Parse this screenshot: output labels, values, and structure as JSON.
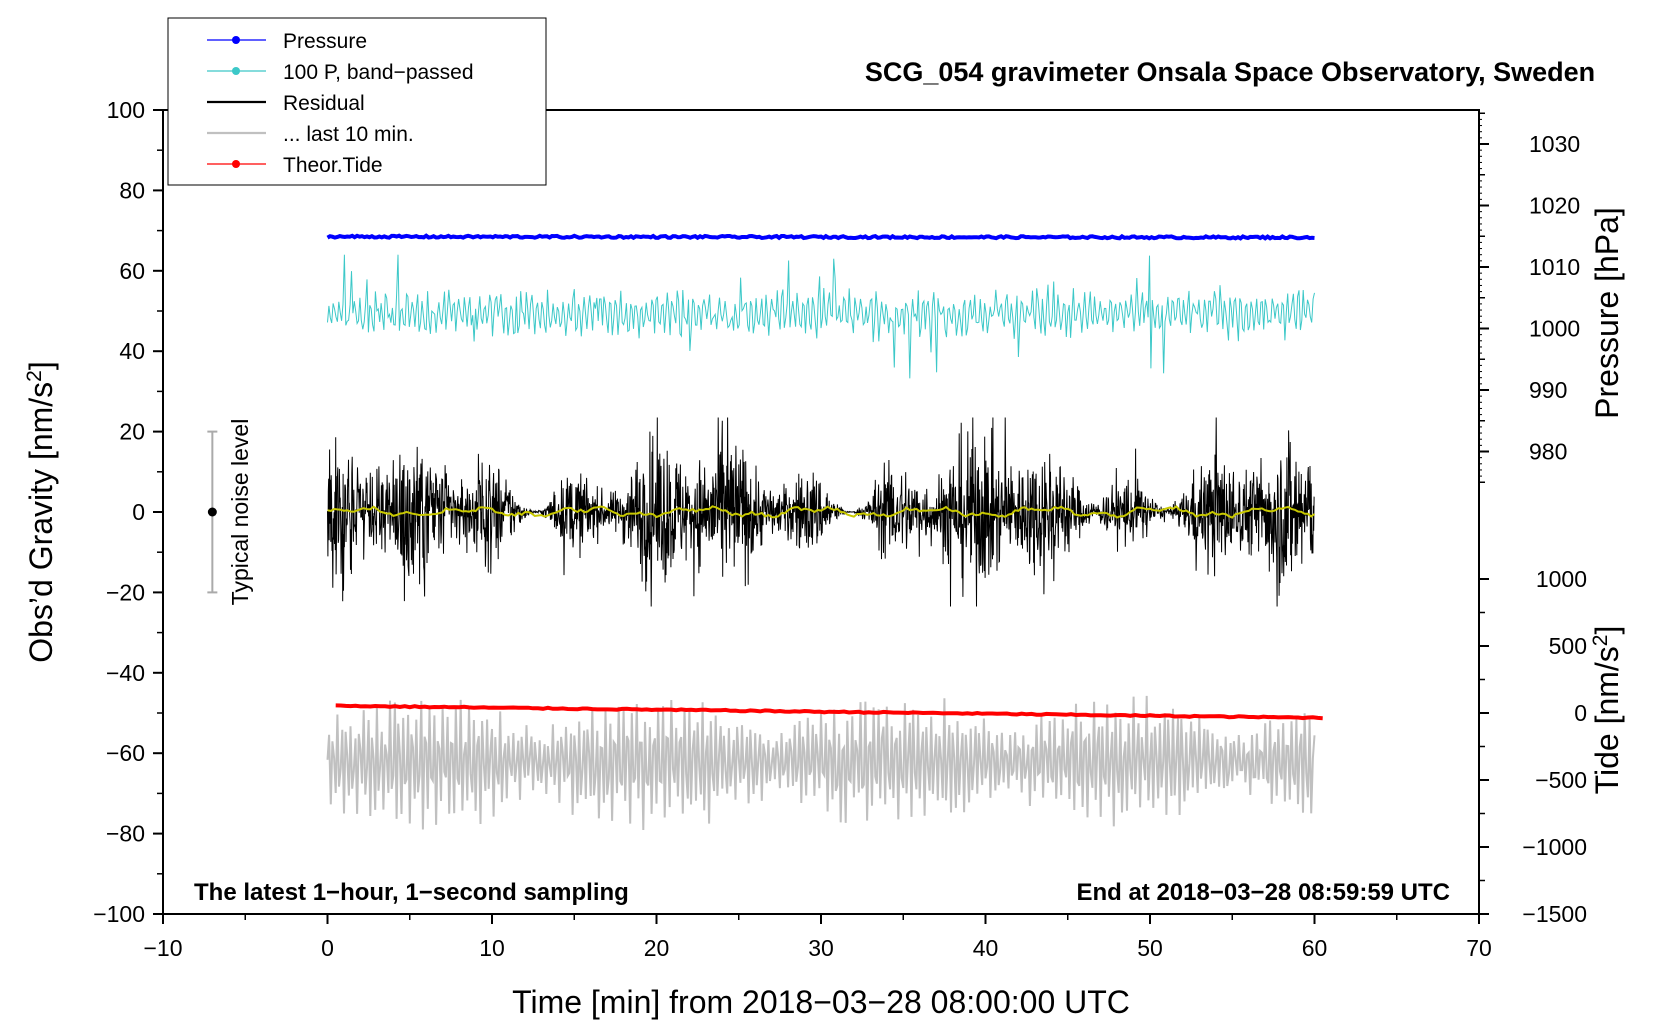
{
  "chart_data": {
    "type": "line",
    "title": "SCG_054 gravimeter Onsala Space Observatory, Sweden",
    "xlabel": "Time [min] from 2018−03−28 08:00:00 UTC",
    "ylabel": "Obs’d Gravity [nm/s",
    "ylabel_sup": "2",
    "ylabel_end": "]",
    "xlim": [
      -10,
      70
    ],
    "ylim": [
      -100,
      100
    ],
    "x_ticks": [
      -10,
      0,
      10,
      20,
      30,
      40,
      50,
      60,
      70
    ],
    "x_tick_labels": [
      "−10",
      "0",
      "10",
      "20",
      "30",
      "40",
      "50",
      "60",
      "70"
    ],
    "y_ticks": [
      -100,
      -80,
      -60,
      -40,
      -20,
      0,
      20,
      40,
      60,
      80,
      100
    ],
    "y_tick_labels": [
      "−100",
      "−80",
      "−60",
      "−40",
      "−20",
      "0",
      "20",
      "40",
      "60",
      "80",
      "100"
    ],
    "pressure_axis": {
      "label": "Pressure [hPa]",
      "ticks": [
        980,
        990,
        1000,
        1010,
        1020,
        1030
      ],
      "tick_labels": [
        "980",
        "990",
        "1000",
        "1010",
        "1020",
        "1030"
      ]
    },
    "tide_axis": {
      "label": "Tide [nm/s",
      "label_sup": "2",
      "label_end": "]",
      "ticks": [
        -1500,
        -1000,
        -500,
        0,
        500,
        1000
      ],
      "tick_labels": [
        "−1500",
        "−1000",
        "−500",
        "0",
        "500",
        "1000"
      ]
    },
    "series": [
      {
        "name": "Pressure",
        "color": "#0000ff",
        "x": [
          0,
          60
        ],
        "values_hpa": [
          1014.7,
          1014.3
        ],
        "values_plot": [
          68.5,
          68.3
        ]
      },
      {
        "name": "100 P, band−passed",
        "color": "#3cc8c8",
        "x": [
          0,
          60
        ],
        "values_plot_mean": 49.5,
        "values_plot_range": [
          28.5,
          64
        ]
      },
      {
        "name": "Residual",
        "color": "#000000",
        "x": [
          0,
          60
        ],
        "values_plot_mean": 0,
        "values_plot_range": [
          -24,
          24
        ]
      },
      {
        "name": "... last 10 min.",
        "color": "#c0c0c0",
        "x": [
          0,
          60
        ],
        "values_plot_mean": -62,
        "values_plot_range": [
          -85,
          -40
        ]
      },
      {
        "name": "Theor.Tide",
        "color": "#ff0000",
        "x": [
          0.5,
          60.5
        ],
        "values_plot": [
          -48.2,
          -51.2
        ]
      }
    ],
    "noise_bar": {
      "label": "Typical noise level",
      "x": -7,
      "y": 0,
      "range": [
        -20,
        20
      ]
    },
    "annotations": {
      "left": "The latest 1−hour, 1−second sampling",
      "right": "End at 2018−03−28 08:59:59 UTC"
    },
    "legend_position": "top-left"
  },
  "colors": {
    "pressure": "#0000ff",
    "bandpassed": "#3cc8c8",
    "residual": "#000000",
    "last10": "#c0c0c0",
    "tide": "#ff0000",
    "smooth": "#c8c800",
    "noisebar": "#aaaaaa"
  }
}
